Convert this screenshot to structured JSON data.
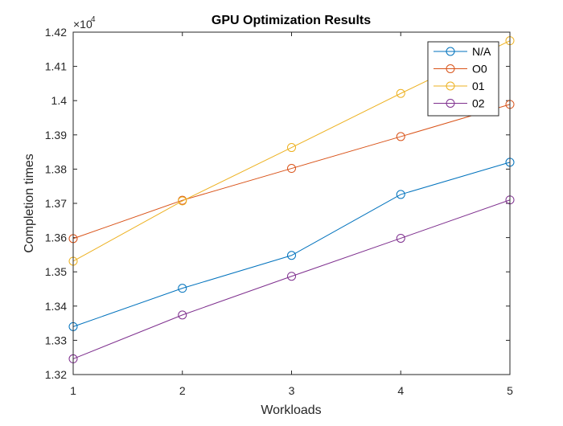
{
  "chart_data": {
    "type": "line",
    "title": "GPU Optimization Results",
    "xlabel": "Workloads",
    "ylabel": "Completion times",
    "exponent_base": "×10",
    "exponent_power": "4",
    "xlim": [
      1,
      5
    ],
    "ylim": [
      13200,
      14200
    ],
    "xticks": [
      1,
      2,
      3,
      4,
      5
    ],
    "xtick_labels": [
      "1",
      "2",
      "3",
      "4",
      "5"
    ],
    "yticks": [
      13200,
      13300,
      13400,
      13500,
      13600,
      13700,
      13800,
      13900,
      14000,
      14100,
      14200
    ],
    "ytick_labels": [
      "1.32",
      "1.33",
      "1.34",
      "1.35",
      "1.36",
      "1.37",
      "1.38",
      "1.39",
      "1.4",
      "1.41",
      "1.42"
    ],
    "grid": false,
    "legend_position": "top-right",
    "marker": "circle",
    "x": [
      1,
      2,
      3,
      4,
      5
    ],
    "series": [
      {
        "name": "N/A",
        "color": "#0072BD",
        "values": [
          13340,
          13452,
          13548,
          13726,
          13820
        ]
      },
      {
        "name": "O0",
        "color": "#D95319",
        "values": [
          13597,
          13709,
          13802,
          13895,
          13989
        ]
      },
      {
        "name": "01",
        "color": "#EDB120",
        "values": [
          13531,
          13707,
          13863,
          14021,
          14175
        ]
      },
      {
        "name": "02",
        "color": "#7E2F8E",
        "values": [
          13246,
          13374,
          13487,
          13598,
          13710
        ]
      }
    ]
  }
}
